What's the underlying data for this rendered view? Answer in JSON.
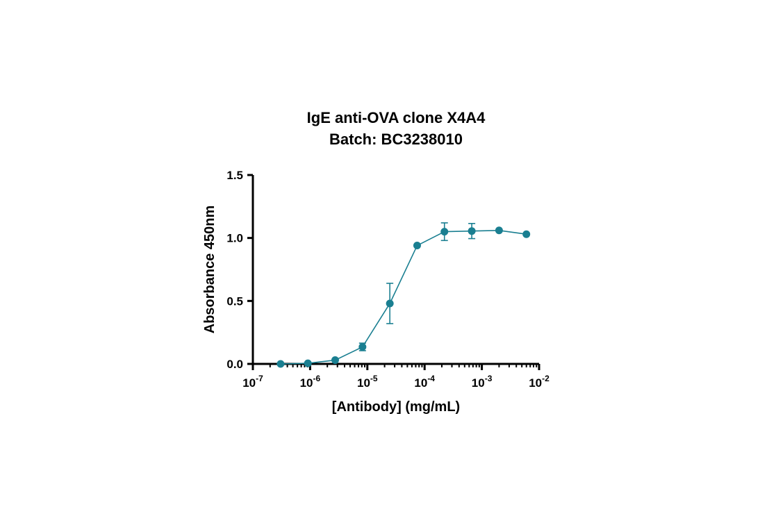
{
  "chart_data": {
    "type": "line",
    "title": [
      "IgE anti-OVA clone X4A4",
      "Batch: BC3238010"
    ],
    "xlabel": "[Antibody] (mg/mL)",
    "ylabel": "Absorbance 450nm",
    "xscale": "log",
    "xlim": [
      1e-07,
      0.01
    ],
    "ylim": [
      0,
      1.5
    ],
    "xticks": [
      {
        "base": "10",
        "exp": "-7"
      },
      {
        "base": "10",
        "exp": "-6"
      },
      {
        "base": "10",
        "exp": "-5"
      },
      {
        "base": "10",
        "exp": "-4"
      },
      {
        "base": "10",
        "exp": "-3"
      },
      {
        "base": "10",
        "exp": "-2"
      }
    ],
    "yticks": [
      "0.0",
      "0.5",
      "1.0",
      "1.5"
    ],
    "grid": false,
    "color": "#1a7f91",
    "series": [
      {
        "x": [
          3.05e-07,
          9.14e-07,
          2.74e-06,
          8.23e-06,
          2.47e-05,
          7.41e-05,
          0.000222,
          0.000667,
          0.002,
          0.006
        ],
        "y": [
          0.0,
          0.005,
          0.03,
          0.135,
          0.48,
          0.94,
          1.05,
          1.055,
          1.06,
          1.03
        ],
        "err": [
          0.0,
          0.0,
          0.0,
          0.03,
          0.16,
          0.0,
          0.07,
          0.06,
          0.0,
          0.0
        ]
      }
    ]
  }
}
